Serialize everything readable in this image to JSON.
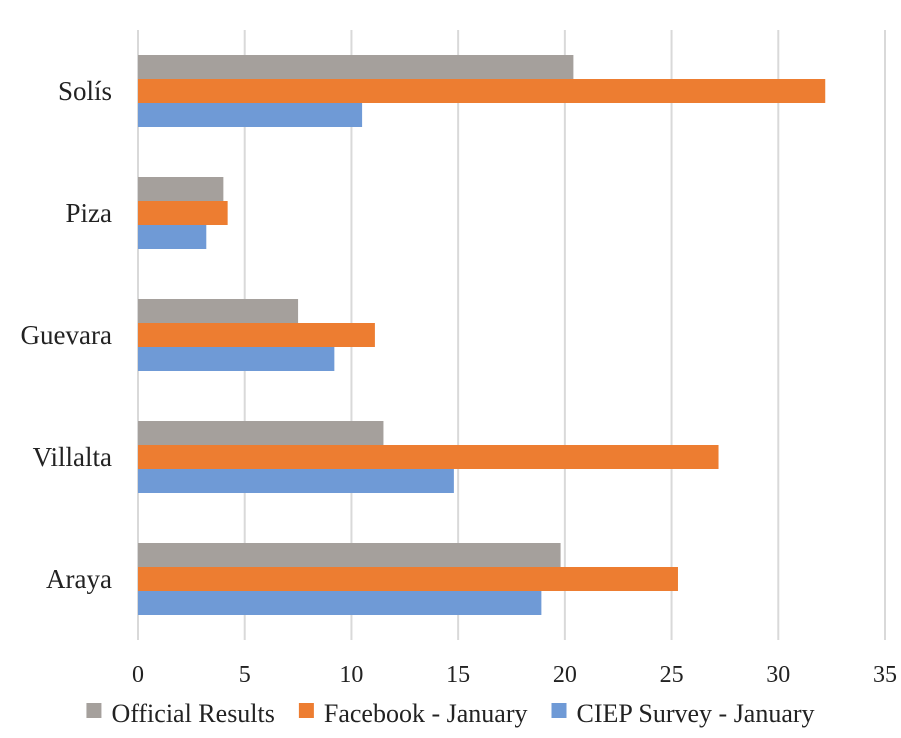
{
  "chart_data": {
    "type": "bar",
    "orientation": "horizontal",
    "title": "",
    "xlabel": "",
    "ylabel": "",
    "categories": [
      "Solís",
      "Piza",
      "Guevara",
      "Villalta",
      "Araya"
    ],
    "xlim": [
      0,
      35
    ],
    "xticks": [
      "0",
      "5",
      "10",
      "15",
      "20",
      "25",
      "30",
      "35"
    ],
    "grid": "vertical",
    "legend_position": "bottom",
    "series": [
      {
        "name": "Official Results",
        "color": "#a5a09c",
        "values": [
          20.4,
          4.0,
          7.5,
          11.5,
          19.8
        ]
      },
      {
        "name": "Facebook - January",
        "color": "#ed7d31",
        "values": [
          32.2,
          4.2,
          11.1,
          27.2,
          25.3
        ]
      },
      {
        "name": "CIEP Survey - January",
        "color": "#6f9ad6",
        "values": [
          10.5,
          3.2,
          9.2,
          14.8,
          18.9
        ]
      }
    ]
  }
}
